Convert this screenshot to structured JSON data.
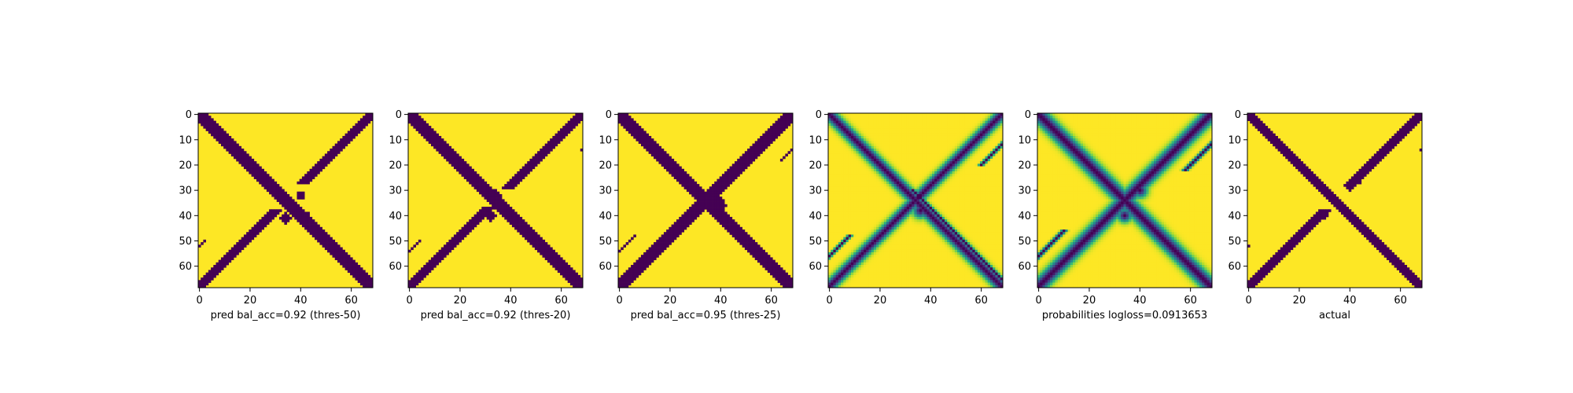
{
  "colors": {
    "dark": "#440154",
    "bright": "#fde725",
    "colormap": "viridis"
  },
  "chart_data": [
    {
      "type": "heatmap",
      "xlabel": "pred bal_acc=0.92 (thres-50)",
      "ylabel": "",
      "xticks": [
        0,
        20,
        40,
        60
      ],
      "yticks": [
        0,
        10,
        20,
        30,
        40,
        50,
        60
      ],
      "xlim": [
        0,
        69
      ],
      "ylim": [
        69,
        0
      ],
      "grid_size": 69,
      "values_kind": "binary",
      "bands": [
        {
          "kind": "main-diagonal",
          "width": 2.2
        },
        {
          "kind": "anti-diagonal",
          "width": 2.0,
          "gap": [
            28,
            37
          ]
        },
        {
          "kind": "short-anti-diagonal",
          "offset": 14,
          "range": [
            3,
            12
          ],
          "width": 0.6
        },
        {
          "kind": "short-anti-diagonal",
          "offset": -16,
          "range": [
            50,
            62
          ],
          "width": 0.6
        }
      ],
      "blobs": [
        {
          "x": 40,
          "y": 32,
          "r": 1.8
        },
        {
          "x": 34,
          "y": 41,
          "r": 2.0
        },
        {
          "x": 42,
          "y": 40,
          "r": 1.5
        }
      ]
    },
    {
      "type": "heatmap",
      "xlabel": "pred bal_acc=0.92 (thres-20)",
      "ylabel": "",
      "xticks": [
        0,
        20,
        40,
        60
      ],
      "yticks": [
        0,
        10,
        20,
        30,
        40,
        50,
        60
      ],
      "xlim": [
        0,
        69
      ],
      "ylim": [
        69,
        0
      ],
      "grid_size": 69,
      "values_kind": "binary",
      "bands": [
        {
          "kind": "main-diagonal",
          "width": 2.3
        },
        {
          "kind": "anti-diagonal",
          "width": 2.1,
          "gap": [
            30,
            36
          ]
        },
        {
          "kind": "short-anti-diagonal",
          "offset": 14,
          "range": [
            3,
            14
          ],
          "width": 0.6
        },
        {
          "kind": "short-anti-diagonal",
          "offset": -14,
          "range": [
            50,
            63
          ],
          "width": 0.6
        }
      ],
      "blobs": [
        {
          "x": 34,
          "y": 32,
          "r": 2.0
        },
        {
          "x": 32,
          "y": 40,
          "r": 2.2
        }
      ]
    },
    {
      "type": "heatmap",
      "xlabel": "pred bal_acc=0.95 (thres-25)",
      "ylabel": "",
      "xticks": [
        0,
        20,
        40,
        60
      ],
      "yticks": [
        0,
        10,
        20,
        30,
        40,
        50,
        60
      ],
      "xlim": [
        0,
        69
      ],
      "ylim": [
        69,
        0
      ],
      "grid_size": 69,
      "values_kind": "binary",
      "bands": [
        {
          "kind": "main-diagonal",
          "width": 2.6
        },
        {
          "kind": "anti-diagonal",
          "width": 2.6,
          "gap": []
        },
        {
          "kind": "short-anti-diagonal",
          "offset": 14,
          "range": [
            5,
            18
          ],
          "width": 0.7
        },
        {
          "kind": "short-anti-diagonal",
          "offset": -14,
          "range": [
            48,
            66
          ],
          "width": 0.7
        }
      ],
      "blobs": [
        {
          "x": 38,
          "y": 36,
          "r": 4.0
        }
      ]
    },
    {
      "type": "heatmap",
      "xlabel": "",
      "ylabel": "",
      "xticks": [
        0,
        20,
        40,
        60
      ],
      "yticks": [
        0,
        10,
        20,
        30,
        40,
        50,
        60
      ],
      "xlim": [
        0,
        69
      ],
      "ylim": [
        69,
        0
      ],
      "grid_size": 69,
      "values_kind": "continuous",
      "bands": [
        {
          "kind": "main-diagonal",
          "width": 1.6
        },
        {
          "kind": "anti-diagonal",
          "width": 1.5,
          "gap": []
        },
        {
          "kind": "short-anti-diagonal",
          "offset": 12,
          "range": [
            2,
            20
          ],
          "width": 0.5
        },
        {
          "kind": "short-anti-diagonal",
          "offset": -12,
          "range": [
            48,
            68
          ],
          "width": 0.5
        },
        {
          "kind": "short-main-diagonal",
          "offset": 3,
          "range": [
            30,
            68
          ],
          "width": 0.5
        }
      ],
      "blobs": [
        {
          "x": 36,
          "y": 38,
          "r": 2.0
        },
        {
          "x": 55,
          "y": 55,
          "r": 1.2
        }
      ]
    },
    {
      "type": "heatmap",
      "xlabel": "probabilities logloss=0.0913653",
      "ylabel": "",
      "xticks": [
        0,
        20,
        40,
        60
      ],
      "yticks": [
        0,
        10,
        20,
        30,
        40,
        50,
        60
      ],
      "xlim": [
        0,
        69
      ],
      "ylim": [
        69,
        0
      ],
      "grid_size": 69,
      "values_kind": "continuous",
      "bands": [
        {
          "kind": "main-diagonal",
          "width": 2.0
        },
        {
          "kind": "anti-diagonal",
          "width": 1.9,
          "gap": []
        },
        {
          "kind": "short-anti-diagonal",
          "offset": 12,
          "range": [
            4,
            22
          ],
          "width": 0.6
        },
        {
          "kind": "short-anti-diagonal",
          "offset": -12,
          "range": [
            46,
            66
          ],
          "width": 0.6
        }
      ],
      "blobs": [
        {
          "x": 40,
          "y": 30,
          "r": 2.0
        },
        {
          "x": 34,
          "y": 40,
          "r": 1.8
        }
      ]
    },
    {
      "type": "heatmap",
      "xlabel": "actual",
      "ylabel": "",
      "xticks": [
        0,
        20,
        40,
        60
      ],
      "yticks": [
        0,
        10,
        20,
        30,
        40,
        50,
        60
      ],
      "xlim": [
        0,
        69
      ],
      "ylim": [
        69,
        0
      ],
      "grid_size": 69,
      "values_kind": "binary",
      "bands": [
        {
          "kind": "main-diagonal",
          "width": 1.7
        },
        {
          "kind": "anti-diagonal",
          "width": 1.6,
          "gap": [
            29,
            37
          ]
        },
        {
          "kind": "short-anti-diagonal",
          "offset": 14,
          "range": [
            3,
            14
          ],
          "width": 0.5
        },
        {
          "kind": "short-anti-diagonal",
          "offset": -16,
          "range": [
            52,
            60
          ],
          "width": 0.5
        }
      ],
      "blobs": [
        {
          "x": 40,
          "y": 29,
          "r": 1.2
        },
        {
          "x": 38,
          "y": 38,
          "r": 2.2
        },
        {
          "x": 30,
          "y": 40,
          "r": 1.2
        },
        {
          "x": 44,
          "y": 27,
          "r": 0.9
        }
      ]
    }
  ]
}
